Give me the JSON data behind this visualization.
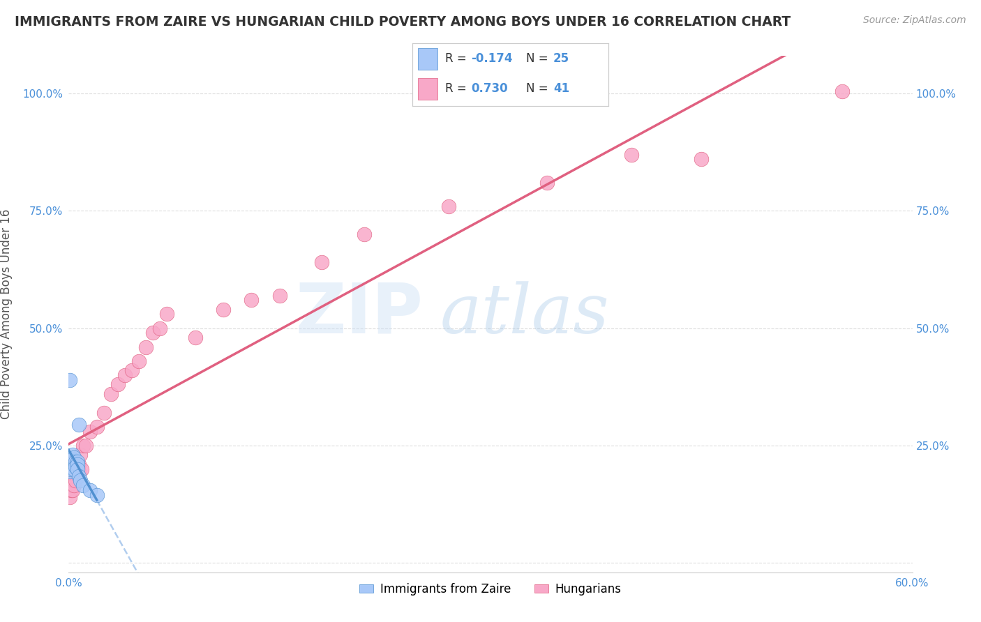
{
  "title": "IMMIGRANTS FROM ZAIRE VS HUNGARIAN CHILD POVERTY AMONG BOYS UNDER 16 CORRELATION CHART",
  "source": "Source: ZipAtlas.com",
  "ylabel": "Child Poverty Among Boys Under 16",
  "xlim": [
    0.0,
    0.6
  ],
  "ylim": [
    -0.02,
    1.08
  ],
  "xticks": [
    0.0,
    0.1,
    0.2,
    0.3,
    0.4,
    0.5,
    0.6
  ],
  "xticklabels": [
    "0.0%",
    "",
    "",
    "",
    "",
    "",
    "60.0%"
  ],
  "yticks": [
    0.0,
    0.25,
    0.5,
    0.75,
    1.0
  ],
  "yticklabels_left": [
    "",
    "25.0%",
    "50.0%",
    "75.0%",
    "100.0%"
  ],
  "yticklabels_right": [
    "",
    "25.0%",
    "50.0%",
    "75.0%",
    "100.0%"
  ],
  "watermark_zip": "ZIP",
  "watermark_atlas": "atlas",
  "legend_r1": "-0.174",
  "legend_n1": "25",
  "legend_r2": "0.730",
  "legend_n2": "41",
  "legend_label1": "Immigrants from Zaire",
  "legend_label2": "Hungarians",
  "blue_color": "#a8c8f8",
  "pink_color": "#f8a8c8",
  "blue_line_color": "#5090d0",
  "pink_line_color": "#e06080",
  "blue_dashed_color": "#90b8e8",
  "background_color": "#ffffff",
  "grid_color": "#dddddd",
  "tick_color": "#4a90d9",
  "title_color": "#333333",
  "source_color": "#999999",
  "zaire_x": [
    0.001,
    0.001,
    0.001,
    0.002,
    0.002,
    0.002,
    0.002,
    0.003,
    0.003,
    0.003,
    0.004,
    0.004,
    0.004,
    0.005,
    0.005,
    0.005,
    0.006,
    0.006,
    0.006,
    0.007,
    0.007,
    0.008,
    0.01,
    0.015,
    0.02
  ],
  "zaire_y": [
    0.39,
    0.21,
    0.195,
    0.22,
    0.215,
    0.2,
    0.21,
    0.23,
    0.22,
    0.205,
    0.215,
    0.225,
    0.2,
    0.21,
    0.215,
    0.205,
    0.215,
    0.21,
    0.2,
    0.295,
    0.185,
    0.175,
    0.165,
    0.155,
    0.145
  ],
  "hungarian_x": [
    0.001,
    0.001,
    0.002,
    0.002,
    0.003,
    0.003,
    0.004,
    0.004,
    0.005,
    0.005,
    0.006,
    0.006,
    0.007,
    0.007,
    0.008,
    0.009,
    0.01,
    0.012,
    0.015,
    0.02,
    0.025,
    0.03,
    0.035,
    0.04,
    0.045,
    0.05,
    0.055,
    0.06,
    0.065,
    0.07,
    0.09,
    0.11,
    0.13,
    0.15,
    0.18,
    0.21,
    0.27,
    0.34,
    0.4,
    0.45,
    0.55
  ],
  "hungarian_y": [
    0.14,
    0.175,
    0.155,
    0.17,
    0.165,
    0.155,
    0.175,
    0.165,
    0.195,
    0.175,
    0.19,
    0.205,
    0.21,
    0.195,
    0.23,
    0.2,
    0.25,
    0.25,
    0.28,
    0.29,
    0.32,
    0.36,
    0.38,
    0.4,
    0.41,
    0.43,
    0.46,
    0.49,
    0.5,
    0.53,
    0.48,
    0.54,
    0.56,
    0.57,
    0.64,
    0.7,
    0.76,
    0.81,
    0.87,
    0.86,
    1.005
  ],
  "zaire_line_x0": 0.0,
  "zaire_line_x1": 0.025,
  "hungarian_line_x0": 0.0,
  "hungarian_line_x1": 0.575
}
